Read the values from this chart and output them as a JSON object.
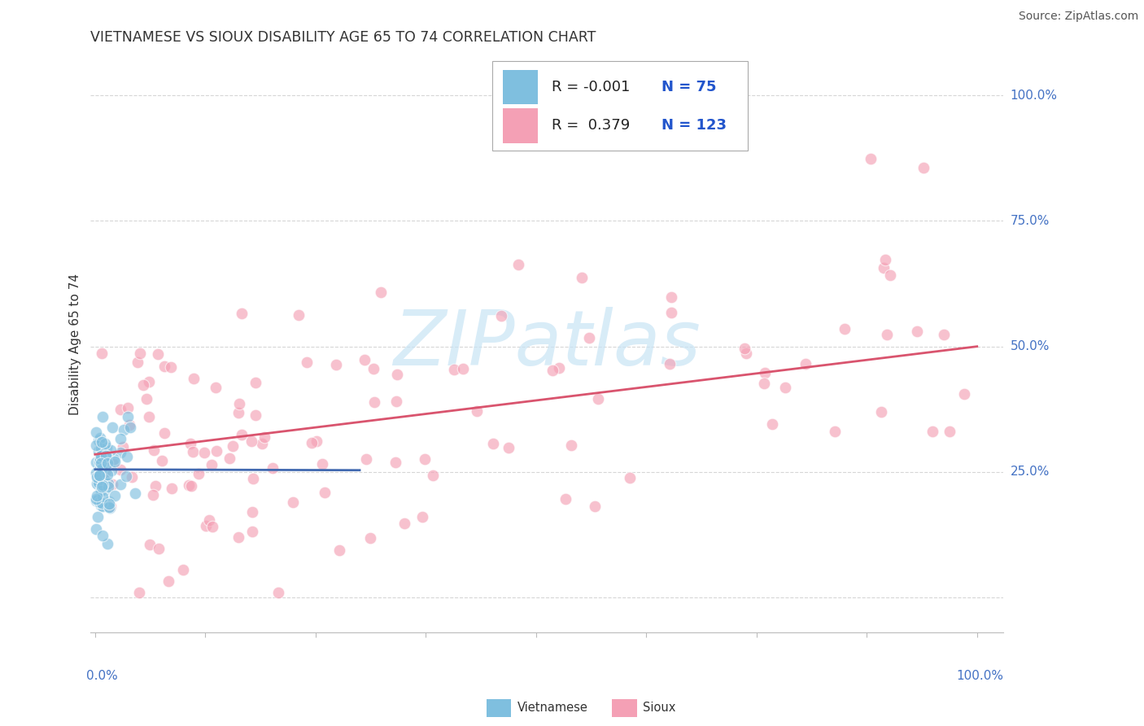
{
  "title": "VIETNAMESE VS SIOUX DISABILITY AGE 65 TO 74 CORRELATION CHART",
  "source": "Source: ZipAtlas.com",
  "ylabel": "Disability Age 65 to 74",
  "color_vietnamese": "#7fbfdf",
  "color_sioux": "#f4a0b5",
  "color_line_vietnamese": "#4169b0",
  "color_line_sioux": "#d9546e",
  "watermark_color": "#c8e4f5",
  "background_color": "#ffffff",
  "grid_color": "#cccccc",
  "title_fontsize": 12.5,
  "axis_label_fontsize": 11,
  "tick_label_color": "#4472c4",
  "tick_label_fontsize": 11,
  "source_fontsize": 10,
  "legend_r1_val": "-0.001",
  "legend_n1_val": "75",
  "legend_r2_val": "0.379",
  "legend_n2_val": "123"
}
